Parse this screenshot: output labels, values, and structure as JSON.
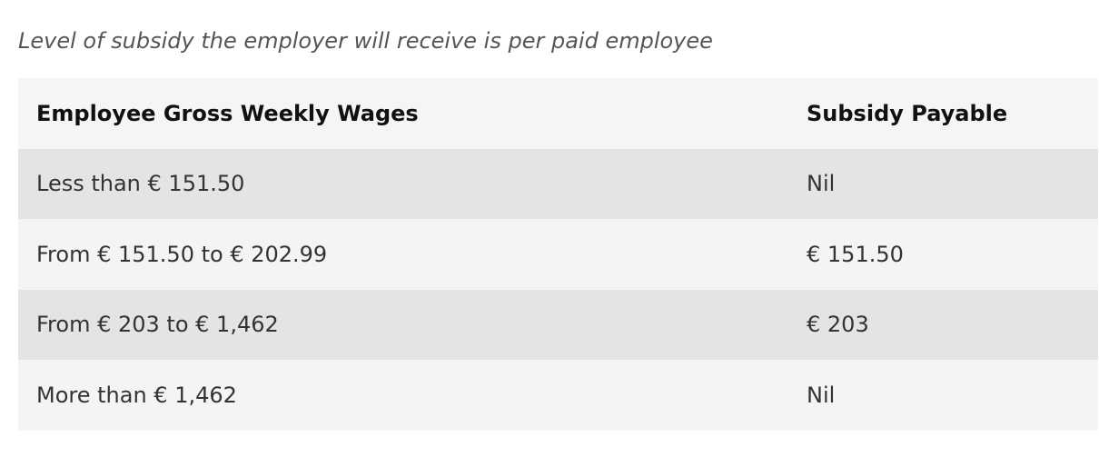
{
  "caption": "Level of subsidy the employer will receive is per paid employee",
  "table": {
    "headers": [
      "Employee Gross Weekly Wages",
      "Subsidy Payable"
    ],
    "rows": [
      [
        "Less than € 151.50",
        "Nil"
      ],
      [
        "From € 151.50 to € 202.99",
        "€ 151.50"
      ],
      [
        "From € 203 to € 1,462",
        "€ 203"
      ],
      [
        "More than € 1,462",
        "Nil"
      ]
    ]
  },
  "colors": {
    "header_bg": "#f5f5f5",
    "shaded_row_bg": "#e3e4e6",
    "light_row_bg": "#f4f4f4",
    "caption_text": "#555555"
  }
}
